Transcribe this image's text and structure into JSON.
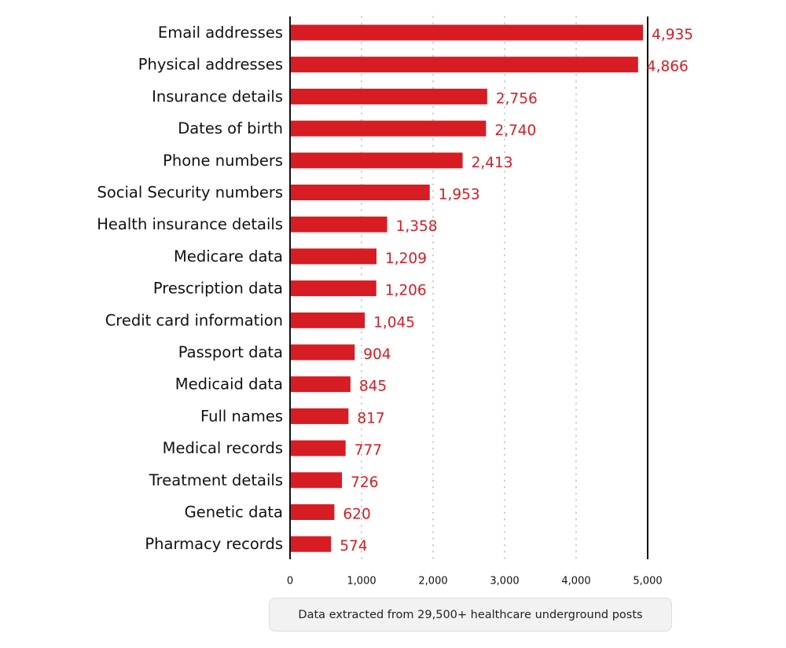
{
  "colors": {
    "bar": "#d71c24",
    "value_label": "#d71c24",
    "axis": "#111111",
    "grid": "#aaaaaa"
  },
  "chart_data": {
    "type": "bar",
    "orientation": "horizontal",
    "title": "",
    "xlabel": "",
    "ylabel": "",
    "categories": [
      "Email addresses",
      "Physical addresses",
      "Insurance details",
      "Dates of birth",
      "Phone numbers",
      "Social Security numbers",
      "Health insurance details",
      "Medicare data",
      "Prescription data",
      "Credit card information",
      "Passport data",
      "Medicaid data",
      "Full names",
      "Medical records",
      "Treatment details",
      "Genetic data",
      "Pharmacy records"
    ],
    "values": [
      4935,
      4866,
      2756,
      2740,
      2413,
      1953,
      1358,
      1209,
      1206,
      1045,
      904,
      845,
      817,
      777,
      726,
      620,
      574
    ],
    "value_labels": [
      "4,935",
      "4,866",
      "2,756",
      "2,740",
      "2,413",
      "1,953",
      "1,358",
      "1,209",
      "1,206",
      "1,045",
      "904",
      "845",
      "817",
      "777",
      "726",
      "620",
      "574"
    ],
    "xlim": [
      0,
      5000
    ],
    "xticks": [
      0,
      1000,
      2000,
      3000,
      4000,
      5000
    ],
    "xtick_labels": [
      "0",
      "1,000",
      "2,000",
      "3,000",
      "4,000",
      "5,000"
    ],
    "grid": "vertical dotted",
    "legend": "none"
  },
  "footnote": "Data extracted from 29,500+ healthcare underground posts"
}
